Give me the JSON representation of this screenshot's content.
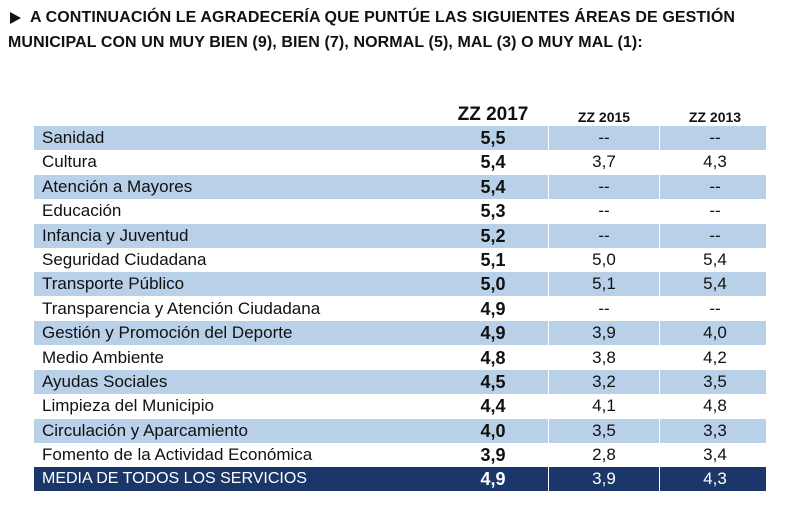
{
  "heading": {
    "line1": "A CONTINUACIÓN LE AGRADECERÍA QUE PUNTÚE LAS SIGUIENTES ÁREAS DE GESTIÓN",
    "line2": "MUNICIPAL CON UN MUY BIEN (9), BIEN (7), NORMAL (5), MAL (3) O MUY MAL (1):"
  },
  "columns": [
    "ZZ 2017",
    "ZZ 2015",
    "ZZ 2013"
  ],
  "rows": [
    {
      "name": "Sanidad",
      "v2017": "5,5",
      "v2015": "--",
      "v2013": "--"
    },
    {
      "name": "Cultura",
      "v2017": "5,4",
      "v2015": "3,7",
      "v2013": "4,3"
    },
    {
      "name": "Atención a Mayores",
      "v2017": "5,4",
      "v2015": "--",
      "v2013": "--"
    },
    {
      "name": "Educación",
      "v2017": "5,3",
      "v2015": "--",
      "v2013": "--"
    },
    {
      "name": "Infancia y Juventud",
      "v2017": "5,2",
      "v2015": "--",
      "v2013": "--"
    },
    {
      "name": "Seguridad Ciudadana",
      "v2017": "5,1",
      "v2015": "5,0",
      "v2013": "5,4"
    },
    {
      "name": "Transporte Público",
      "v2017": "5,0",
      "v2015": "5,1",
      "v2013": "5,4"
    },
    {
      "name": "Transparencia y Atención Ciudadana",
      "v2017": "4,9",
      "v2015": "--",
      "v2013": "--"
    },
    {
      "name": "Gestión y Promoción del Deporte",
      "v2017": "4,9",
      "v2015": "3,9",
      "v2013": "4,0"
    },
    {
      "name": "Medio Ambiente",
      "v2017": "4,8",
      "v2015": "3,8",
      "v2013": "4,2"
    },
    {
      "name": "Ayudas Sociales",
      "v2017": "4,5",
      "v2015": "3,2",
      "v2013": "3,5"
    },
    {
      "name": "Limpieza del Municipio",
      "v2017": "4,4",
      "v2015": "4,1",
      "v2013": "4,8"
    },
    {
      "name": "Circulación y Aparcamiento",
      "v2017": "4,0",
      "v2015": "3,5",
      "v2013": "3,3"
    },
    {
      "name": "Fomento de la Actividad Económica",
      "v2017": "3,9",
      "v2015": "2,8",
      "v2013": "3,4"
    }
  ],
  "total": {
    "name": "MEDIA DE TODOS LOS SERVICIOS",
    "v2017": "4,9",
    "v2015": "3,9",
    "v2013": "4,3"
  },
  "colors": {
    "row_shade": "#b8d0e8",
    "total_bg": "#1b3668"
  }
}
